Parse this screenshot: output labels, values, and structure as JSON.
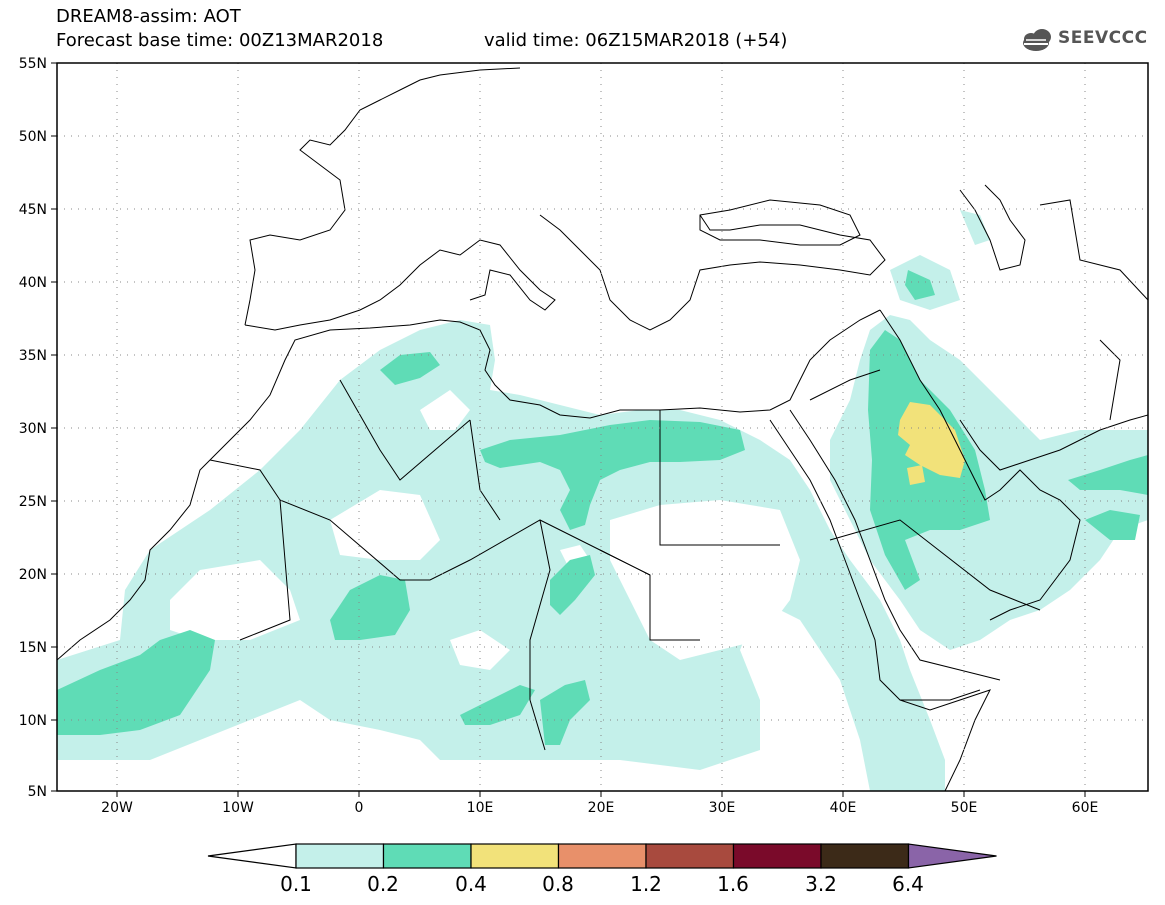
{
  "header": {
    "title": "DREAM8-assim: AOT",
    "base_time": "Forecast base time: 00Z13MAR2018",
    "valid_time": "valid time: 06Z15MAR2018 (+54)"
  },
  "logo": {
    "text": "SEEVCCC",
    "icon": "cloud-icon"
  },
  "map": {
    "lat_labels": [
      "55N",
      "50N",
      "45N",
      "40N",
      "35N",
      "30N",
      "25N",
      "20N",
      "15N",
      "10N",
      "5N"
    ],
    "lon_labels": [
      "20W",
      "10W",
      "0",
      "10E",
      "20E",
      "30E",
      "40E",
      "50E",
      "60E"
    ],
    "lat_range": [
      5,
      55
    ],
    "lon_range": [
      -25,
      65
    ],
    "grid": "dotted"
  },
  "colorbar": {
    "labels": [
      "0.1",
      "0.2",
      "0.4",
      "0.8",
      "1.2",
      "1.6",
      "3.2",
      "6.4"
    ],
    "colors": [
      "#ffffff",
      "#c4f0ea",
      "#5fdcb6",
      "#f2e27a",
      "#e8906a",
      "#a84a3e",
      "#7a0a2a",
      "#3c2a18",
      "#8a64a8"
    ]
  },
  "chart_data": {
    "type": "heatmap",
    "variable": "AOT",
    "levels": [
      0.1,
      0.2,
      0.4,
      0.8,
      1.2,
      1.6,
      3.2,
      6.4
    ],
    "xlabel": "",
    "ylabel": ""
  }
}
